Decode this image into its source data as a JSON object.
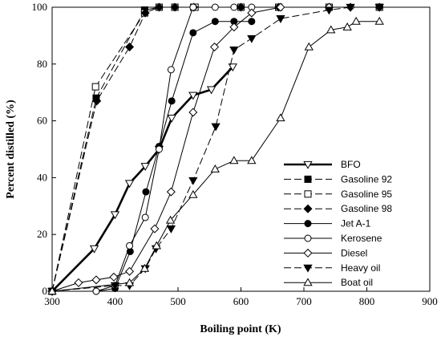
{
  "chart_data": {
    "type": "line",
    "xlabel": "Boiling point (K)",
    "ylabel": "Percent distilled (%)",
    "xlim": [
      300,
      900
    ],
    "ylim": [
      0,
      100
    ],
    "xticks": [
      300,
      400,
      500,
      600,
      700,
      800,
      900
    ],
    "yticks": [
      0,
      20,
      40,
      60,
      80,
      100
    ],
    "grid": false,
    "legend_position": "bottom-right",
    "series": [
      {
        "name": "BFO",
        "line": "solid-thick",
        "marker": "triangle-down-open",
        "points": [
          [
            300,
            0
          ],
          [
            367,
            15
          ],
          [
            400,
            27
          ],
          [
            423,
            38
          ],
          [
            448,
            44
          ],
          [
            470,
            50
          ],
          [
            490,
            61
          ],
          [
            524,
            69
          ],
          [
            553,
            71
          ],
          [
            587,
            79
          ]
        ]
      },
      {
        "name": "Gasoline 92",
        "line": "dashed",
        "marker": "square-filled",
        "points": [
          [
            300,
            0
          ],
          [
            370,
            68
          ],
          [
            447,
            99
          ],
          [
            470,
            100
          ],
          [
            495,
            100
          ],
          [
            525,
            100
          ],
          [
            600,
            100
          ],
          [
            660,
            100
          ],
          [
            740,
            100
          ],
          [
            820,
            100
          ]
        ]
      },
      {
        "name": "Gasoline 95",
        "line": "dashed",
        "marker": "square-open",
        "points": [
          [
            300,
            0
          ],
          [
            369,
            72
          ],
          [
            447,
            98
          ],
          [
            470,
            100
          ],
          [
            495,
            100
          ],
          [
            527,
            100
          ],
          [
            600,
            100
          ],
          [
            660,
            100
          ],
          [
            740,
            100
          ],
          [
            820,
            100
          ]
        ]
      },
      {
        "name": "Gasoline 98",
        "line": "dashed",
        "marker": "diamond-filled",
        "points": [
          [
            300,
            0
          ],
          [
            371,
            67
          ],
          [
            423,
            86
          ],
          [
            448,
            98
          ],
          [
            470,
            100
          ],
          [
            495,
            100
          ],
          [
            525,
            100
          ],
          [
            600,
            100
          ],
          [
            660,
            100
          ],
          [
            740,
            100
          ],
          [
            820,
            100
          ]
        ]
      },
      {
        "name": "Jet A-1",
        "line": "solid",
        "marker": "circle-filled",
        "points": [
          [
            300,
            0
          ],
          [
            370,
            0
          ],
          [
            400,
            1
          ],
          [
            424,
            14
          ],
          [
            449,
            35
          ],
          [
            470,
            51
          ],
          [
            490,
            67
          ],
          [
            524,
            91
          ],
          [
            559,
            95
          ],
          [
            589,
            95
          ],
          [
            617,
            95
          ]
        ]
      },
      {
        "name": "Kerosene",
        "line": "solid",
        "marker": "circle-open",
        "points": [
          [
            300,
            0
          ],
          [
            370,
            0
          ],
          [
            400,
            2
          ],
          [
            423,
            16
          ],
          [
            448,
            26
          ],
          [
            470,
            50
          ],
          [
            489,
            78
          ],
          [
            524,
            100
          ],
          [
            559,
            100
          ],
          [
            589,
            100
          ],
          [
            617,
            100
          ]
        ]
      },
      {
        "name": "Diesel",
        "line": "solid",
        "marker": "diamond-open",
        "points": [
          [
            300,
            0
          ],
          [
            342,
            3
          ],
          [
            370,
            4
          ],
          [
            398,
            5
          ],
          [
            423,
            7
          ],
          [
            463,
            22
          ],
          [
            489,
            35
          ],
          [
            524,
            63
          ],
          [
            558,
            86
          ],
          [
            589,
            93
          ],
          [
            617,
            98
          ],
          [
            663,
            100
          ],
          [
            740,
            100
          ],
          [
            774,
            100
          ]
        ]
      },
      {
        "name": "Heavy oil",
        "line": "dashed",
        "marker": "triangle-down-filled",
        "points": [
          [
            300,
            0
          ],
          [
            400,
            2
          ],
          [
            423,
            2
          ],
          [
            448,
            8
          ],
          [
            465,
            15
          ],
          [
            489,
            22
          ],
          [
            524,
            39
          ],
          [
            560,
            58
          ],
          [
            589,
            85
          ],
          [
            617,
            89
          ],
          [
            663,
            96
          ],
          [
            740,
            99
          ],
          [
            774,
            100
          ],
          [
            820,
            100
          ]
        ]
      },
      {
        "name": "Boat oil",
        "line": "solid",
        "marker": "triangle-up-open",
        "points": [
          [
            300,
            0
          ],
          [
            423,
            3
          ],
          [
            447,
            8
          ],
          [
            466,
            16
          ],
          [
            488,
            25
          ],
          [
            524,
            34
          ],
          [
            559,
            43
          ],
          [
            589,
            46
          ],
          [
            617,
            46
          ],
          [
            663,
            61
          ],
          [
            708,
            86
          ],
          [
            743,
            92
          ],
          [
            769,
            93
          ],
          [
            783,
            95
          ],
          [
            820,
            95
          ]
        ]
      }
    ]
  }
}
